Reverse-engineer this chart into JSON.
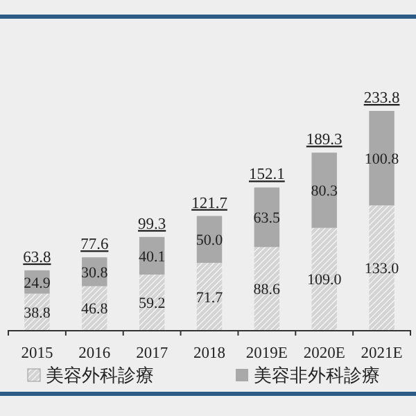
{
  "chart_data": {
    "type": "bar",
    "stacked": true,
    "categories": [
      "2015",
      "2016",
      "2017",
      "2018",
      "2019E",
      "2020E",
      "2021E"
    ],
    "series": [
      {
        "name": "美容外科診療",
        "color": "#d4d4d4",
        "values": [
          38.8,
          46.8,
          59.2,
          71.7,
          88.6,
          109,
          133
        ],
        "value_labels": [
          "38.8",
          "46.8",
          "59.2",
          "71.7",
          "88.6",
          "109.0",
          "133.0"
        ]
      },
      {
        "name": "美容非外科診療",
        "color": "#a9a9a9",
        "values": [
          24.9,
          30.8,
          40.1,
          50,
          63.5,
          80.3,
          100.8
        ],
        "value_labels": [
          "24.9",
          "30.8",
          "40.1",
          "50.0",
          "63.5",
          "80.3",
          "100.8"
        ]
      }
    ],
    "totals": [
      "63.8",
      "77.6",
      "99.3",
      "121.7",
      "152.1",
      "189.3",
      "233.8"
    ],
    "legend": "bottom"
  }
}
